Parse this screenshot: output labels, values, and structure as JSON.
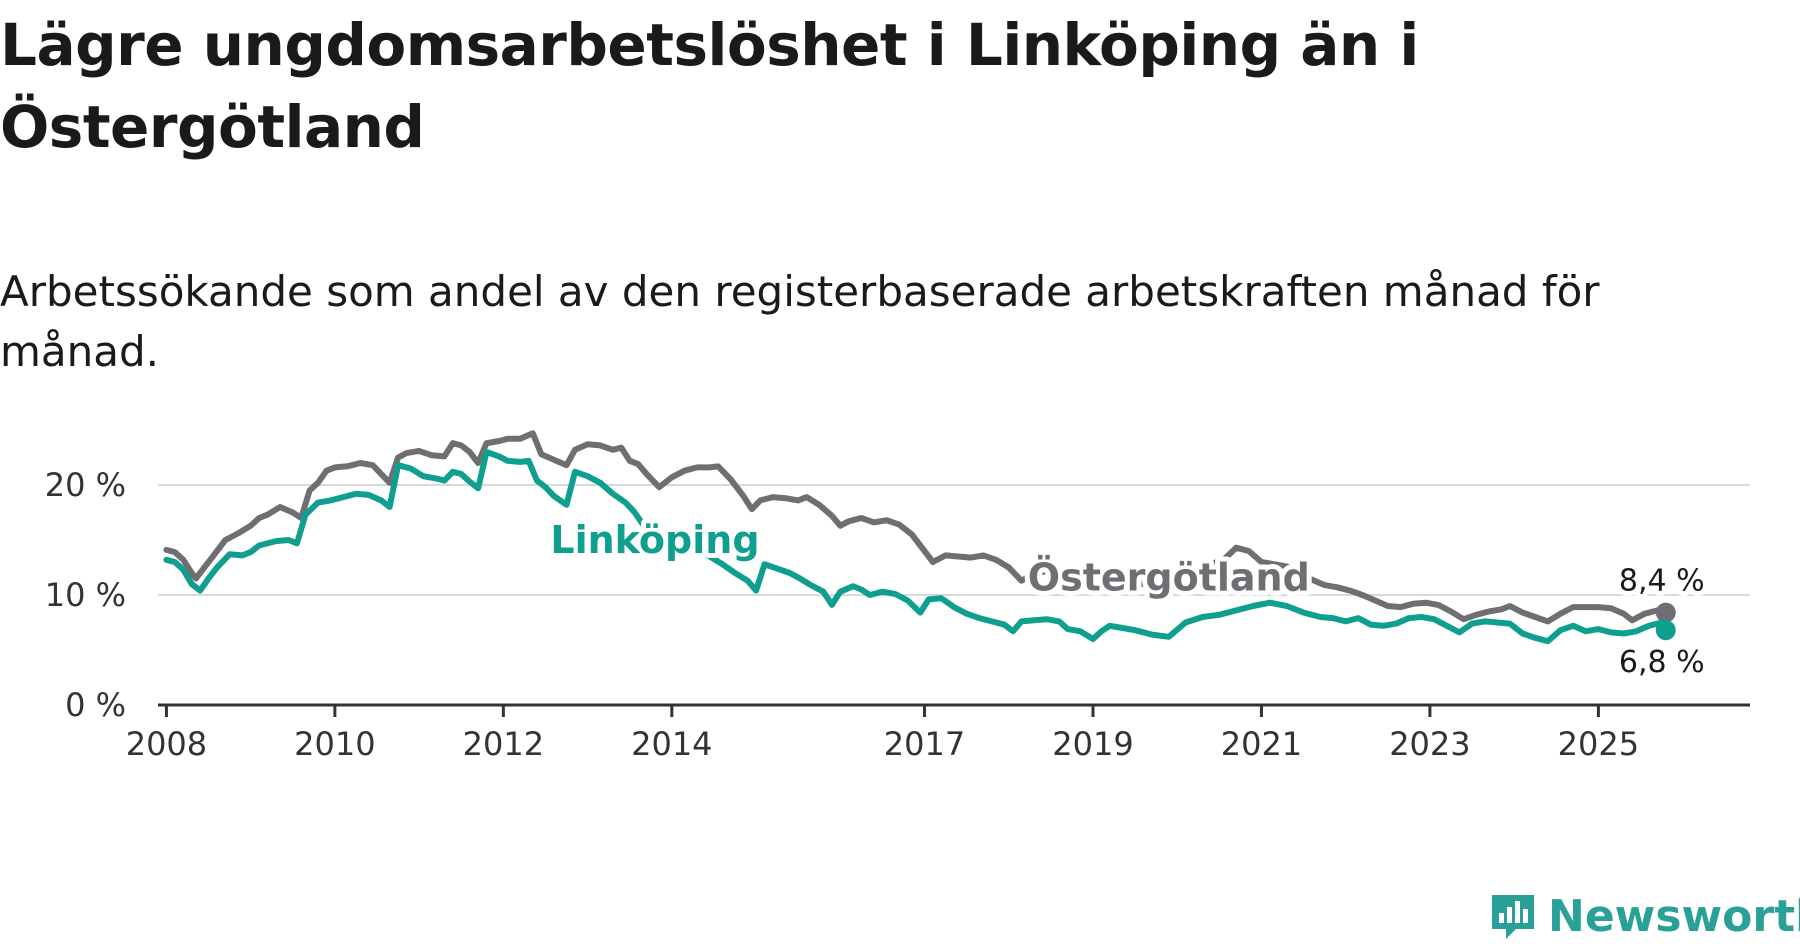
{
  "header": {
    "title": "Lägre ungdomsarbetslöshet i Linköping än i Östergötland",
    "subtitle": "Arbetssökande som andel av den registerbaserade arbetskraften månad för månad."
  },
  "logo": {
    "text": "Newsworthy",
    "icon": "newsworthy-logo-icon",
    "color": "#2aa198"
  },
  "chart_data": {
    "type": "line",
    "title": "Lägre ungdomsarbetslöshet i Linköping än i Östergötland",
    "xlabel": "",
    "ylabel": "",
    "ylim": [
      0,
      25
    ],
    "xlim": [
      2007.9,
      2026.8
    ],
    "yticks": [
      {
        "value": 0,
        "label": "0 %"
      },
      {
        "value": 10,
        "label": "10 %"
      },
      {
        "value": 20,
        "label": "20 %"
      }
    ],
    "xticks": [
      {
        "value": 2008,
        "label": "2008"
      },
      {
        "value": 2010,
        "label": "2010"
      },
      {
        "value": 2012,
        "label": "2012"
      },
      {
        "value": 2014,
        "label": "2014"
      },
      {
        "value": 2017,
        "label": "2017"
      },
      {
        "value": 2019,
        "label": "2019"
      },
      {
        "value": 2021,
        "label": "2021"
      },
      {
        "value": 2023,
        "label": "2023"
      },
      {
        "value": 2025,
        "label": "2025"
      }
    ],
    "grid": true,
    "series": [
      {
        "name": "Östergötland",
        "color": "#6f6e73",
        "end_label": "8,4 %",
        "points": [
          [
            2008.0,
            14.1
          ],
          [
            2008.1,
            13.9
          ],
          [
            2008.2,
            13.2
          ],
          [
            2008.3,
            12.0
          ],
          [
            2008.35,
            11.5
          ],
          [
            2008.45,
            12.5
          ],
          [
            2008.55,
            13.5
          ],
          [
            2008.7,
            15.0
          ],
          [
            2008.85,
            15.6
          ],
          [
            2009.0,
            16.3
          ],
          [
            2009.1,
            17.0
          ],
          [
            2009.2,
            17.3
          ],
          [
            2009.35,
            18.0
          ],
          [
            2009.5,
            17.5
          ],
          [
            2009.6,
            17.0
          ],
          [
            2009.7,
            19.5
          ],
          [
            2009.8,
            20.2
          ],
          [
            2009.9,
            21.3
          ],
          [
            2010.0,
            21.6
          ],
          [
            2010.15,
            21.7
          ],
          [
            2010.3,
            22.0
          ],
          [
            2010.45,
            21.8
          ],
          [
            2010.55,
            21.0
          ],
          [
            2010.65,
            20.2
          ],
          [
            2010.75,
            22.5
          ],
          [
            2010.85,
            22.9
          ],
          [
            2011.0,
            23.1
          ],
          [
            2011.15,
            22.7
          ],
          [
            2011.3,
            22.6
          ],
          [
            2011.4,
            23.8
          ],
          [
            2011.5,
            23.6
          ],
          [
            2011.6,
            23.0
          ],
          [
            2011.7,
            22.0
          ],
          [
            2011.8,
            23.8
          ],
          [
            2011.95,
            24.0
          ],
          [
            2012.05,
            24.2
          ],
          [
            2012.2,
            24.2
          ],
          [
            2012.35,
            24.7
          ],
          [
            2012.45,
            22.8
          ],
          [
            2012.6,
            22.3
          ],
          [
            2012.75,
            21.8
          ],
          [
            2012.85,
            23.2
          ],
          [
            2013.0,
            23.7
          ],
          [
            2013.15,
            23.6
          ],
          [
            2013.3,
            23.2
          ],
          [
            2013.4,
            23.4
          ],
          [
            2013.5,
            22.2
          ],
          [
            2013.6,
            21.9
          ],
          [
            2013.7,
            21.0
          ],
          [
            2013.85,
            19.8
          ],
          [
            2014.0,
            20.7
          ],
          [
            2014.15,
            21.3
          ],
          [
            2014.3,
            21.6
          ],
          [
            2014.45,
            21.6
          ],
          [
            2014.55,
            21.7
          ],
          [
            2014.7,
            20.5
          ],
          [
            2014.85,
            19.0
          ],
          [
            2014.95,
            17.8
          ],
          [
            2015.05,
            18.6
          ],
          [
            2015.2,
            18.9
          ],
          [
            2015.35,
            18.8
          ],
          [
            2015.5,
            18.6
          ],
          [
            2015.6,
            18.9
          ],
          [
            2015.75,
            18.2
          ],
          [
            2015.9,
            17.2
          ],
          [
            2016.0,
            16.3
          ],
          [
            2016.1,
            16.7
          ],
          [
            2016.25,
            17.0
          ],
          [
            2016.4,
            16.6
          ],
          [
            2016.55,
            16.8
          ],
          [
            2016.7,
            16.4
          ],
          [
            2016.85,
            15.5
          ],
          [
            2017.0,
            14.0
          ],
          [
            2017.1,
            13.0
          ],
          [
            2017.25,
            13.6
          ],
          [
            2017.4,
            13.5
          ],
          [
            2017.55,
            13.4
          ],
          [
            2017.7,
            13.6
          ],
          [
            2017.85,
            13.2
          ],
          [
            2018.0,
            12.5
          ],
          [
            2018.15,
            11.3
          ],
          [
            2018.3,
            11.9
          ],
          [
            2018.45,
            12.2
          ],
          [
            2018.6,
            12.0
          ],
          [
            2018.75,
            11.8
          ],
          [
            2018.9,
            11.2
          ],
          [
            2019.0,
            10.8
          ],
          [
            2019.2,
            11.0
          ],
          [
            2019.4,
            11.3
          ],
          [
            2019.6,
            11.0
          ],
          [
            2019.8,
            10.9
          ],
          [
            2020.0,
            11.2
          ],
          [
            2020.2,
            12.0
          ],
          [
            2020.4,
            12.8
          ],
          [
            2020.55,
            13.2
          ],
          [
            2020.7,
            14.3
          ],
          [
            2020.85,
            14.0
          ],
          [
            2021.0,
            13.0
          ],
          [
            2021.15,
            12.8
          ],
          [
            2021.3,
            12.6
          ],
          [
            2021.45,
            11.8
          ],
          [
            2021.6,
            11.4
          ],
          [
            2021.75,
            10.9
          ],
          [
            2021.9,
            10.7
          ],
          [
            2022.05,
            10.4
          ],
          [
            2022.2,
            10.0
          ],
          [
            2022.35,
            9.5
          ],
          [
            2022.5,
            9.0
          ],
          [
            2022.65,
            8.9
          ],
          [
            2022.8,
            9.2
          ],
          [
            2022.95,
            9.3
          ],
          [
            2023.1,
            9.1
          ],
          [
            2023.25,
            8.5
          ],
          [
            2023.4,
            7.8
          ],
          [
            2023.55,
            8.2
          ],
          [
            2023.7,
            8.5
          ],
          [
            2023.85,
            8.7
          ],
          [
            2023.95,
            9.0
          ],
          [
            2024.1,
            8.4
          ],
          [
            2024.25,
            8.0
          ],
          [
            2024.4,
            7.6
          ],
          [
            2024.55,
            8.3
          ],
          [
            2024.7,
            8.9
          ],
          [
            2024.85,
            8.9
          ],
          [
            2025.0,
            8.9
          ],
          [
            2025.15,
            8.8
          ],
          [
            2025.3,
            8.3
          ],
          [
            2025.4,
            7.7
          ],
          [
            2025.55,
            8.3
          ],
          [
            2025.7,
            8.6
          ],
          [
            2025.8,
            8.4
          ]
        ],
        "label_pos": [
          2019.9,
          10.4
        ],
        "label_anchor": "middle"
      },
      {
        "name": "Linköping",
        "color": "#0f9f8f",
        "end_label": "6,8 %",
        "points": [
          [
            2008.0,
            13.2
          ],
          [
            2008.1,
            13.0
          ],
          [
            2008.2,
            12.3
          ],
          [
            2008.3,
            11.0
          ],
          [
            2008.4,
            10.4
          ],
          [
            2008.5,
            11.5
          ],
          [
            2008.6,
            12.5
          ],
          [
            2008.75,
            13.7
          ],
          [
            2008.9,
            13.6
          ],
          [
            2009.0,
            13.9
          ],
          [
            2009.1,
            14.5
          ],
          [
            2009.3,
            14.9
          ],
          [
            2009.45,
            15.0
          ],
          [
            2009.55,
            14.7
          ],
          [
            2009.65,
            17.3
          ],
          [
            2009.8,
            18.4
          ],
          [
            2009.95,
            18.6
          ],
          [
            2010.1,
            18.9
          ],
          [
            2010.25,
            19.2
          ],
          [
            2010.4,
            19.1
          ],
          [
            2010.55,
            18.6
          ],
          [
            2010.65,
            18.0
          ],
          [
            2010.75,
            21.8
          ],
          [
            2010.9,
            21.5
          ],
          [
            2011.05,
            20.8
          ],
          [
            2011.2,
            20.6
          ],
          [
            2011.3,
            20.4
          ],
          [
            2011.4,
            21.2
          ],
          [
            2011.5,
            21.0
          ],
          [
            2011.6,
            20.3
          ],
          [
            2011.7,
            19.7
          ],
          [
            2011.8,
            23.0
          ],
          [
            2011.95,
            22.6
          ],
          [
            2012.05,
            22.2
          ],
          [
            2012.2,
            22.1
          ],
          [
            2012.3,
            22.2
          ],
          [
            2012.4,
            20.4
          ],
          [
            2012.5,
            19.8
          ],
          [
            2012.6,
            19.0
          ],
          [
            2012.75,
            18.2
          ],
          [
            2012.85,
            21.2
          ],
          [
            2013.0,
            20.8
          ],
          [
            2013.15,
            20.2
          ],
          [
            2013.3,
            19.2
          ],
          [
            2013.45,
            18.4
          ],
          [
            2013.55,
            17.6
          ],
          [
            2013.65,
            16.5
          ],
          [
            2013.8,
            15.6
          ],
          [
            2014.0,
            15.0
          ],
          [
            2014.15,
            14.8
          ],
          [
            2014.3,
            14.2
          ],
          [
            2014.45,
            13.5
          ],
          [
            2014.6,
            12.8
          ],
          [
            2014.75,
            12.0
          ],
          [
            2014.9,
            11.3
          ],
          [
            2015.0,
            10.4
          ],
          [
            2015.1,
            12.8
          ],
          [
            2015.25,
            12.4
          ],
          [
            2015.4,
            12.0
          ],
          [
            2015.5,
            11.6
          ],
          [
            2015.65,
            10.9
          ],
          [
            2015.8,
            10.3
          ],
          [
            2015.9,
            9.1
          ],
          [
            2016.0,
            10.3
          ],
          [
            2016.15,
            10.8
          ],
          [
            2016.25,
            10.5
          ],
          [
            2016.35,
            10.0
          ],
          [
            2016.5,
            10.3
          ],
          [
            2016.65,
            10.1
          ],
          [
            2016.8,
            9.5
          ],
          [
            2016.95,
            8.4
          ],
          [
            2017.05,
            9.6
          ],
          [
            2017.2,
            9.7
          ],
          [
            2017.35,
            8.9
          ],
          [
            2017.5,
            8.3
          ],
          [
            2017.65,
            7.9
          ],
          [
            2017.8,
            7.6
          ],
          [
            2017.95,
            7.3
          ],
          [
            2018.05,
            6.7
          ],
          [
            2018.15,
            7.6
          ],
          [
            2018.3,
            7.7
          ],
          [
            2018.45,
            7.8
          ],
          [
            2018.6,
            7.6
          ],
          [
            2018.7,
            6.9
          ],
          [
            2018.85,
            6.7
          ],
          [
            2019.0,
            6.0
          ],
          [
            2019.1,
            6.7
          ],
          [
            2019.2,
            7.2
          ],
          [
            2019.35,
            7.0
          ],
          [
            2019.5,
            6.8
          ],
          [
            2019.7,
            6.4
          ],
          [
            2019.9,
            6.2
          ],
          [
            2020.1,
            7.5
          ],
          [
            2020.3,
            8.0
          ],
          [
            2020.5,
            8.2
          ],
          [
            2020.7,
            8.6
          ],
          [
            2020.9,
            9.0
          ],
          [
            2021.1,
            9.3
          ],
          [
            2021.3,
            9.0
          ],
          [
            2021.5,
            8.4
          ],
          [
            2021.7,
            8.0
          ],
          [
            2021.85,
            7.9
          ],
          [
            2022.0,
            7.6
          ],
          [
            2022.15,
            7.9
          ],
          [
            2022.3,
            7.3
          ],
          [
            2022.45,
            7.2
          ],
          [
            2022.6,
            7.4
          ],
          [
            2022.75,
            7.9
          ],
          [
            2022.9,
            8.0
          ],
          [
            2023.05,
            7.8
          ],
          [
            2023.2,
            7.2
          ],
          [
            2023.35,
            6.6
          ],
          [
            2023.5,
            7.4
          ],
          [
            2023.65,
            7.6
          ],
          [
            2023.8,
            7.5
          ],
          [
            2023.95,
            7.4
          ],
          [
            2024.1,
            6.5
          ],
          [
            2024.25,
            6.1
          ],
          [
            2024.4,
            5.8
          ],
          [
            2024.55,
            6.8
          ],
          [
            2024.7,
            7.2
          ],
          [
            2024.85,
            6.7
          ],
          [
            2025.0,
            6.9
          ],
          [
            2025.15,
            6.6
          ],
          [
            2025.3,
            6.5
          ],
          [
            2025.45,
            6.7
          ],
          [
            2025.6,
            7.2
          ],
          [
            2025.75,
            7.5
          ],
          [
            2025.8,
            6.8
          ]
        ],
        "label_pos": [
          2013.8,
          13.8
        ],
        "label_anchor": "middle"
      }
    ]
  }
}
